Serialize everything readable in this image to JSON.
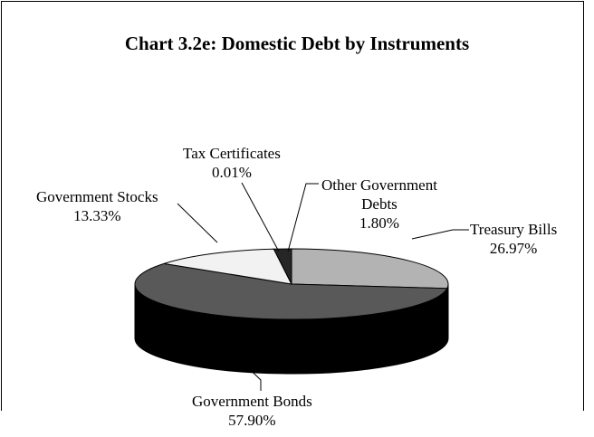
{
  "chart_data": {
    "type": "pie",
    "title": "Chart 3.2e: Domestic Debt by Instruments",
    "categories": [
      "Treasury Bills",
      "Government Bonds",
      "Government Stocks",
      "Tax Certificates",
      "Other Government Debts"
    ],
    "values": [
      26.97,
      57.9,
      13.33,
      0.01,
      1.8
    ],
    "slice_colors": [
      "#b3b3b3",
      "#595959",
      "#f2f2f2",
      "#ffffff",
      "#262626"
    ],
    "labels": {
      "treasury": [
        "Treasury Bills",
        "26.97%"
      ],
      "bonds": [
        "Government Bonds",
        "57.90%"
      ],
      "stocks": [
        "Government Stocks",
        "13.33%"
      ],
      "tax": [
        "Tax Certificates",
        "0.01%"
      ],
      "other": [
        "Other Government",
        "Debts",
        "1.80%"
      ]
    }
  }
}
